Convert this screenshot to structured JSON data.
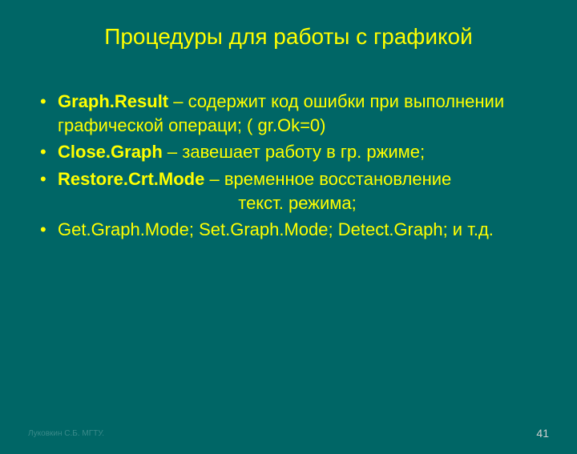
{
  "slide": {
    "background_color": "#006666",
    "text_color": "#ffff00",
    "title": "Процедуры для работы с графикой",
    "title_fontsize": 28,
    "body_fontsize": 22,
    "bullets": [
      {
        "bold": "Graph.Result",
        "rest": " – содержит код ошибки при выполнении графической операци; ( gr.Ok=0)"
      },
      {
        "bold": "Close.Graph",
        "rest": " – завешает работу в гр. ржиме;"
      },
      {
        "bold": "Restore.Crt.Mode",
        "rest": " – временное восстановление",
        "cont_center": "текст. режима;"
      },
      {
        "plain": "Get.Graph.Mode; Set.Graph.Mode; Detect.Graph; и т.д."
      }
    ],
    "footer_left": "Луковкин С.Б. МГТУ.",
    "footer_left_color": "#3a8a8a",
    "page_number": "41",
    "page_number_color": "#d0d0d0"
  }
}
